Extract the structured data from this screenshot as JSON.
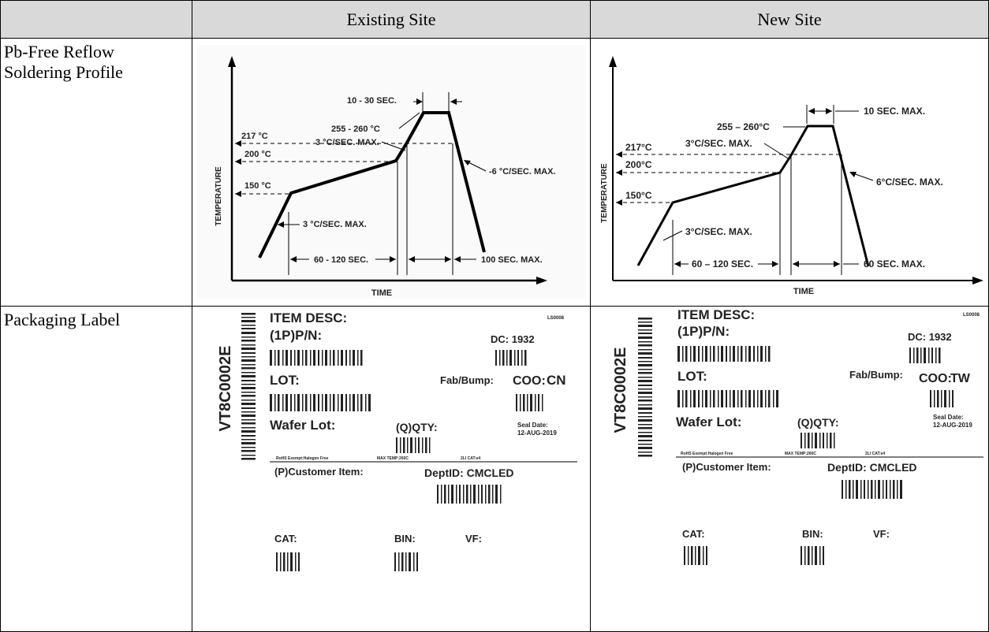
{
  "table": {
    "header": {
      "corner": "",
      "existing": "Existing Site",
      "new": "New Site"
    },
    "row1": {
      "label_line1": "Pb-Free Reflow",
      "label_line2": "Soldering Profile"
    },
    "row2": {
      "label": "Packaging Label"
    }
  },
  "profile_existing": {
    "y_axis": "TEMPERATURE",
    "x_axis": "TIME",
    "peak_time": "10 - 30 SEC.",
    "peak_temp": "255 - 260 °C",
    "ramp_up_rate": "3 °C/SEC. MAX.",
    "t217": "217 °C",
    "t200": "200 °C",
    "t150": "150 °C",
    "ramp_down": "-6 °C/SEC. MAX.",
    "preheat_rate": "3 °C/SEC. MAX.",
    "preheat_time": "60 - 120 SEC.",
    "above_liquidus": "100 SEC. MAX."
  },
  "profile_new": {
    "y_axis": "TEMPERATURE",
    "x_axis": "TIME",
    "peak_time": "10 SEC. MAX.",
    "peak_temp": "255 – 260°C",
    "ramp_up_rate": "3°C/SEC. MAX.",
    "t217": "217°C",
    "t200": "200°C",
    "t150": "150°C",
    "ramp_down": "6°C/SEC. MAX.",
    "preheat_rate": "3°C/SEC. MAX.",
    "preheat_time": "60 – 120 SEC.",
    "above_liquidus": "60 SEC. MAX."
  },
  "label_existing": {
    "vertical_code": "VT8C0002E",
    "item_desc": "ITEM DESC:",
    "code": "LS0008",
    "pn": "(1P)P/N:",
    "dc": "DC: 1932",
    "lot": "LOT:",
    "fab": "Fab/Bump:",
    "coo_label": "COO:",
    "coo_value": "CN",
    "wafer_lot": "Wafer Lot:",
    "qty": "(Q)QTY:",
    "seal_label": "Seal Date:",
    "seal_date": "12-AUG-2019",
    "rohs": "RoHS Exempt:Halogen Free",
    "max_temp": "MAX TEMP:260C",
    "cat_e4": "2LI CAT:e4",
    "customer_item": "(P)Customer Item:",
    "dept": "DeptID: CMCLED",
    "cat": "CAT:",
    "bin": "BIN:",
    "vf": "VF:"
  },
  "label_new": {
    "vertical_code": "VT8C0002E",
    "item_desc": "ITEM DESC:",
    "code": "LS0008",
    "pn": "(1P)P/N:",
    "dc": "DC: 1932",
    "lot": "LOT:",
    "fab": "Fab/Bump:",
    "coo_label": "COO:",
    "coo_value": "TW",
    "wafer_lot": "Wafer Lot:",
    "qty": "(Q)QTY:",
    "seal_label": "Seal Date:",
    "seal_date": "12-AUG-2019",
    "rohs": "RoHS Exempt:Halogen Free",
    "max_temp": "MAX TEMP:260C",
    "cat_e4": "2LI CAT:e4",
    "customer_item": "(P)Customer Item:",
    "dept": "DeptID: CMCLED",
    "cat": "CAT:",
    "bin": "BIN:",
    "vf": "VF:"
  }
}
